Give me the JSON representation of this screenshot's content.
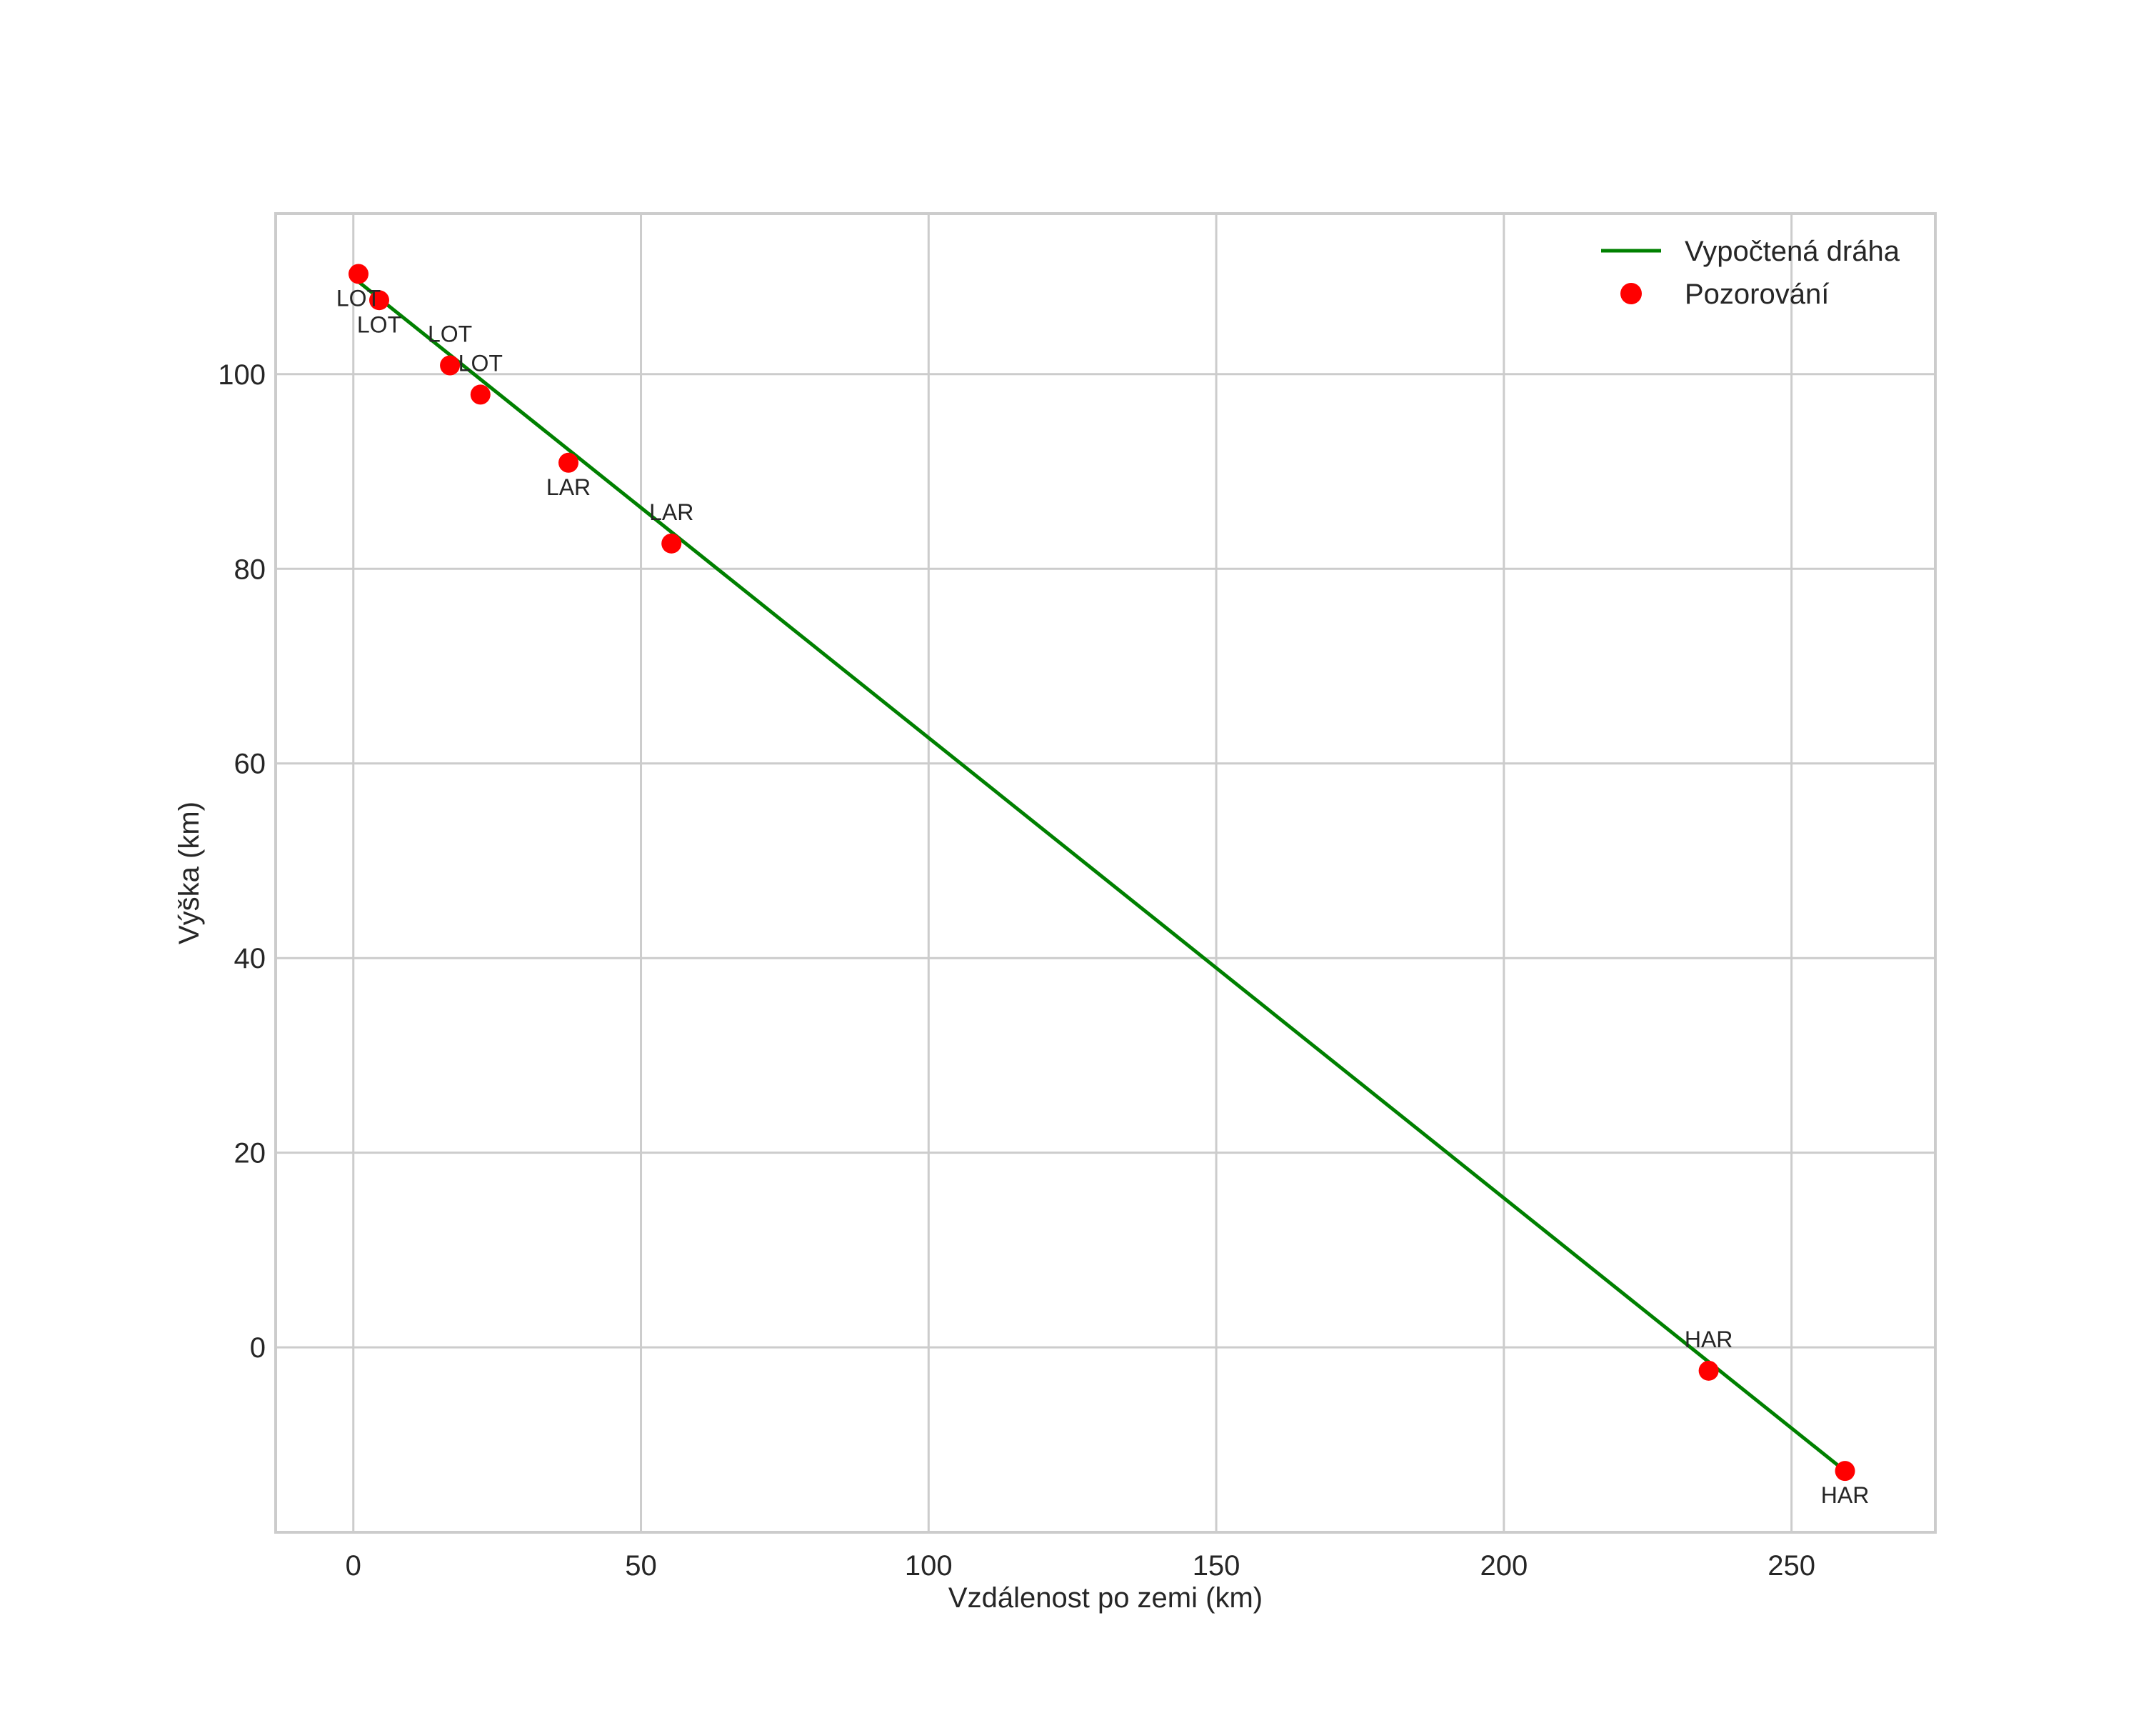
{
  "chart_data": {
    "type": "line",
    "title": "",
    "xlabel": "Vzdálenost po zemi (km)",
    "ylabel": "Výška (km)",
    "xlim": [
      -13.5,
      275
    ],
    "ylim": [
      -19,
      116.5
    ],
    "xticks": [
      0,
      50,
      100,
      150,
      200,
      250
    ],
    "yticks": [
      0,
      20,
      40,
      60,
      80,
      100
    ],
    "grid": true,
    "legend_position": "upper right",
    "series": [
      {
        "name": "Vypočtená dráha",
        "kind": "line",
        "color": "#008000",
        "x": [
          0.9,
          259.3
        ],
        "y": [
          109.5,
          -12.7
        ]
      },
      {
        "name": "Pozorování",
        "kind": "scatter",
        "color": "#ff0000",
        "points": [
          {
            "x": 0.9,
            "y": 110.3,
            "label": "LOT",
            "label_dx": 0,
            "label_dy": 33
          },
          {
            "x": 4.5,
            "y": 107.6,
            "label": "LOT",
            "label_dx": 0,
            "label_dy": 33
          },
          {
            "x": 16.8,
            "y": 100.9,
            "label": "LOT",
            "label_dx": 0,
            "label_dy": -33
          },
          {
            "x": 22.1,
            "y": 97.9,
            "label": "LOT",
            "label_dx": 0,
            "label_dy": -33
          },
          {
            "x": 37.4,
            "y": 90.9,
            "label": "LAR",
            "label_dx": 0,
            "label_dy": 33
          },
          {
            "x": 55.3,
            "y": 82.6,
            "label": "LAR",
            "label_dx": 0,
            "label_dy": -33
          },
          {
            "x": 235.6,
            "y": -2.4,
            "label": "HAR",
            "label_dx": 0,
            "label_dy": -33
          },
          {
            "x": 259.3,
            "y": -12.7,
            "label": "HAR",
            "label_dx": 0,
            "label_dy": 33
          }
        ]
      }
    ]
  },
  "legend": {
    "items": [
      {
        "label": "Vypočtená dráha",
        "marker": "line",
        "color": "#008000"
      },
      {
        "label": "Pozorování",
        "marker": "dot",
        "color": "#ff0000"
      }
    ]
  },
  "colors": {
    "line": "#008000",
    "points": "#ff0000",
    "grid": "#cccccc",
    "text": "#262626"
  }
}
